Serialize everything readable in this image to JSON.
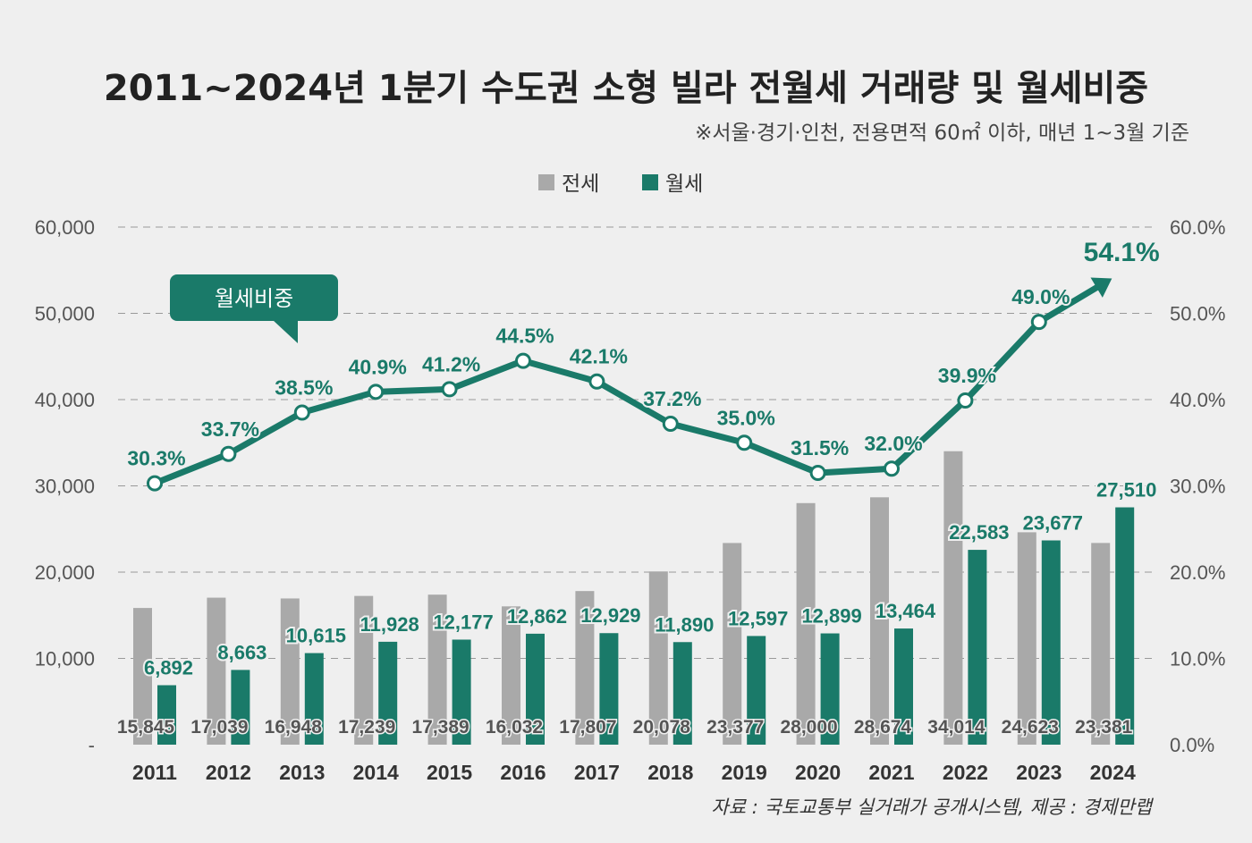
{
  "colors": {
    "background": "#efefef",
    "jeonse": "#a9a9a9",
    "wolse": "#1a7a69",
    "line": "#1a7a69",
    "grid": "#999999"
  },
  "chart_data": {
    "type": "bar",
    "title": "2011~2024년 1분기 수도권 소형 빌라 전월세 거래량 및 월세비중",
    "subtitle": "※서울·경기·인천, 전용면적 60㎡ 이하, 매년 1~3월 기준",
    "source": "자료 : 국토교통부 실거래가 공개시스템, 제공 : 경제만랩",
    "legend": {
      "placement": "top-center",
      "items": [
        "전세",
        "월세"
      ]
    },
    "categories": [
      "2011",
      "2012",
      "2013",
      "2014",
      "2015",
      "2016",
      "2017",
      "2018",
      "2019",
      "2020",
      "2021",
      "2022",
      "2023",
      "2024"
    ],
    "series": [
      {
        "name": "전세",
        "type": "bar",
        "values": [
          15845,
          17039,
          16948,
          17239,
          17389,
          16032,
          17807,
          20078,
          23377,
          28000,
          28674,
          34014,
          24623,
          23381
        ],
        "labels": [
          "15,845",
          "17,039",
          "16,948",
          "17,239",
          "17,389",
          "16,032",
          "17,807",
          "20,078",
          "23,377",
          "28,000",
          "28,674",
          "34,014",
          "24,623",
          "23,381"
        ]
      },
      {
        "name": "월세",
        "type": "bar",
        "values": [
          6892,
          8663,
          10615,
          11928,
          12177,
          12862,
          12929,
          11890,
          12597,
          12899,
          13464,
          22583,
          23677,
          27510
        ],
        "labels": [
          "6,892",
          "8,663",
          "10,615",
          "11,928",
          "12,177",
          "12,862",
          "12,929",
          "11,890",
          "12,597",
          "12,899",
          "13,464",
          "22,583",
          "23,677",
          "27,510"
        ]
      },
      {
        "name": "월세비중",
        "type": "line",
        "axis": "right",
        "values": [
          30.3,
          33.7,
          38.5,
          40.9,
          41.2,
          44.5,
          42.1,
          37.2,
          35.0,
          31.5,
          32.0,
          39.9,
          49.0,
          54.1
        ],
        "labels": [
          "30.3%",
          "33.7%",
          "38.5%",
          "40.9%",
          "41.2%",
          "44.5%",
          "42.1%",
          "37.2%",
          "35.0%",
          "31.5%",
          "32.0%",
          "39.9%",
          "49.0%",
          "54.1%"
        ]
      }
    ],
    "y_left": {
      "range": [
        0,
        60000
      ],
      "ticks": [
        "-",
        "10,000",
        "20,000",
        "30,000",
        "40,000",
        "50,000",
        "60,000"
      ]
    },
    "y_right": {
      "range": [
        0,
        60
      ],
      "ticks": [
        "0.0%",
        "10.0%",
        "20.0%",
        "30.0%",
        "40.0%",
        "50.0%",
        "60.0%"
      ]
    },
    "grid": true,
    "callout": "월세비중"
  }
}
